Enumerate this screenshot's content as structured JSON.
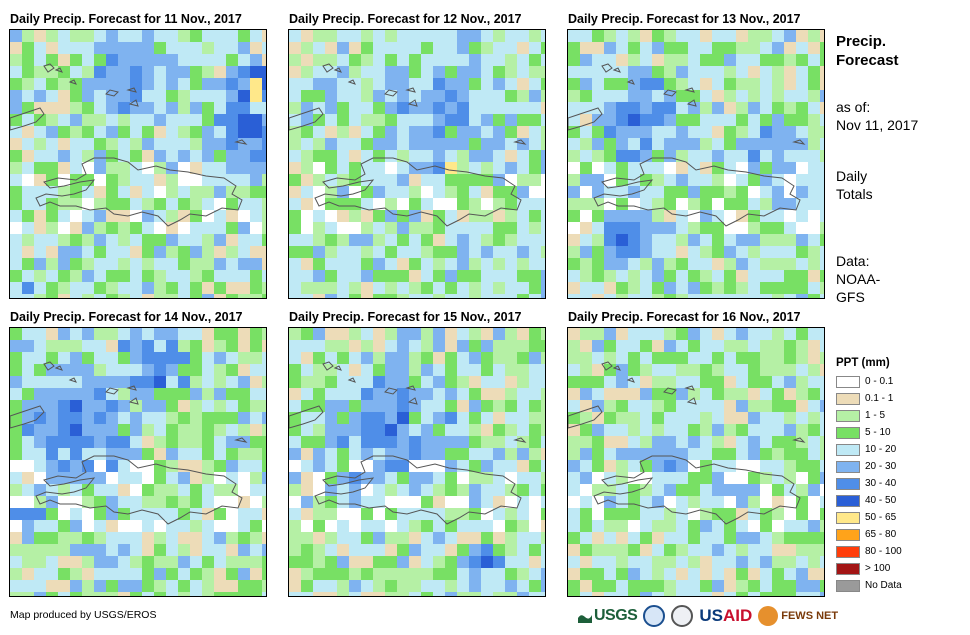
{
  "panels": [
    {
      "title": "Daily Precip. Forecast for 11 Nov., 2017",
      "seed": 11
    },
    {
      "title": "Daily Precip. Forecast for 12 Nov., 2017",
      "seed": 12
    },
    {
      "title": "Daily Precip. Forecast for 13 Nov., 2017",
      "seed": 13
    },
    {
      "title": "Daily Precip. Forecast for 14 Nov., 2017",
      "seed": 14
    },
    {
      "title": "Daily Precip. Forecast for 15 Nov., 2017",
      "seed": 15
    },
    {
      "title": "Daily Precip. Forecast for 16 Nov., 2017",
      "seed": 16
    }
  ],
  "side": {
    "title_line1": "Precip.",
    "title_line2": "Forecast",
    "asof_line1": "as of:",
    "asof_line2": "Nov 11, 2017",
    "totals_line1": "Daily",
    "totals_line2": "Totals",
    "data_line1": "Data:",
    "data_line2": "NOAA-",
    "data_line3": "GFS"
  },
  "legend": {
    "title": "PPT (mm)",
    "items": [
      {
        "label": "0 - 0.1",
        "color": "#ffffff"
      },
      {
        "label": "0.1 - 1",
        "color": "#eddcb8"
      },
      {
        "label": "1 - 5",
        "color": "#b5f0a5"
      },
      {
        "label": "5 - 10",
        "color": "#78e064"
      },
      {
        "label": "10 - 20",
        "color": "#bfe9f5"
      },
      {
        "label": "20 - 30",
        "color": "#7fb3f0"
      },
      {
        "label": "30 - 40",
        "color": "#4f8ee8"
      },
      {
        "label": "40 - 50",
        "color": "#2a5fd6"
      },
      {
        "label": "50 - 65",
        "color": "#ffe88a"
      },
      {
        "label": "65 - 80",
        "color": "#ffa31a"
      },
      {
        "label": "80 - 100",
        "color": "#ff3d0a"
      },
      {
        "label": "> 100",
        "color": "#a31515"
      },
      {
        "label": "No Data",
        "color": "#9a9a9a"
      }
    ]
  },
  "footer": {
    "credit": "Map produced by USGS/EROS"
  },
  "logos": {
    "usgs": "USGS",
    "usaid_us": "US",
    "usaid_aid": "AID",
    "fews": "FEWS NET"
  }
}
